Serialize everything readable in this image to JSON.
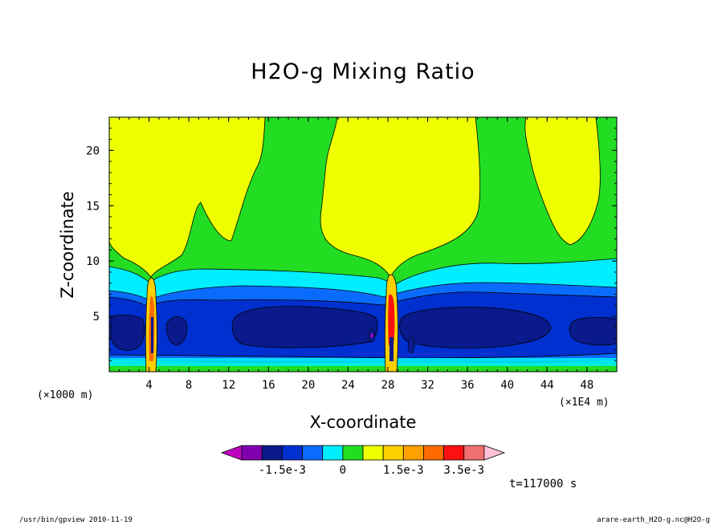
{
  "chart_data": {
    "type": "heatmap",
    "title": "H2O-g Mixing Ratio",
    "xlabel": "X-coordinate",
    "ylabel": "Z-coordinate",
    "x_unit_left": "(×1000 m)",
    "x_unit_right": "(×1E4 m)",
    "x_ticks": [
      "4",
      "8",
      "12",
      "16",
      "20",
      "24",
      "28",
      "32",
      "36",
      "40",
      "44",
      "48"
    ],
    "y_ticks": [
      "5",
      "10",
      "15",
      "20"
    ],
    "xlim": [
      0,
      51
    ],
    "ylim": [
      0,
      23
    ],
    "colorbar": {
      "colors": [
        "#c000c0",
        "#8000b0",
        "#0a1a8c",
        "#0030d0",
        "#0a6cff",
        "#00eeff",
        "#22dd22",
        "#eeff00",
        "#ffd000",
        "#ffa000",
        "#ff6a00",
        "#ff1010",
        "#f07070",
        "#ffc0d8"
      ],
      "labels": [
        "-1.5e-3",
        "0",
        "1.5e-3",
        "3.5e-3"
      ]
    },
    "time_label": "t=117000 s"
  },
  "footer": {
    "left": "/usr/bin/gpview  2010-11-19",
    "right": "arare-earth_H2O-g.nc@H2O-g"
  }
}
